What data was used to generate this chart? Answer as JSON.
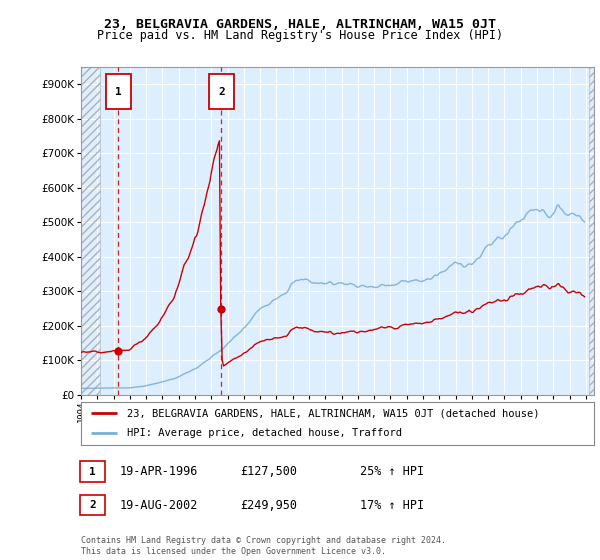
{
  "title": "23, BELGRAVIA GARDENS, HALE, ALTRINCHAM, WA15 0JT",
  "subtitle": "Price paid vs. HM Land Registry's House Price Index (HPI)",
  "legend_line1": "23, BELGRAVIA GARDENS, HALE, ALTRINCHAM, WA15 0JT (detached house)",
  "legend_line2": "HPI: Average price, detached house, Trafford",
  "footnote": "Contains HM Land Registry data © Crown copyright and database right 2024.\nThis data is licensed under the Open Government Licence v3.0.",
  "transaction1_label": "1",
  "transaction1_date": "19-APR-1996",
  "transaction1_price": "£127,500",
  "transaction1_hpi": "25% ↑ HPI",
  "transaction2_label": "2",
  "transaction2_date": "19-AUG-2002",
  "transaction2_price": "£249,950",
  "transaction2_hpi": "17% ↑ HPI",
  "transaction1_x": 1996.29,
  "transaction1_y": 127500,
  "transaction2_x": 2002.62,
  "transaction2_y": 249950,
  "sale_color": "#cc0000",
  "hpi_color": "#7aaed6",
  "background_plot": "#ddeeff",
  "ylim_min": 0,
  "ylim_max": 950000,
  "xlim_min": 1994.0,
  "xlim_max": 2025.5,
  "yticks": [
    0,
    100000,
    200000,
    300000,
    400000,
    500000,
    600000,
    700000,
    800000,
    900000
  ],
  "ytick_labels": [
    "£0",
    "£100K",
    "£200K",
    "£300K",
    "£400K",
    "£500K",
    "£600K",
    "£700K",
    "£800K",
    "£900K"
  ],
  "xtick_years": [
    1994,
    1995,
    1996,
    1997,
    1998,
    1999,
    2000,
    2001,
    2002,
    2003,
    2004,
    2005,
    2006,
    2007,
    2008,
    2009,
    2010,
    2011,
    2012,
    2013,
    2014,
    2015,
    2016,
    2017,
    2018,
    2019,
    2020,
    2021,
    2022,
    2023,
    2024,
    2025
  ],
  "hatch_left_end": 1995.17,
  "hatch_right_start": 2025.17,
  "fig_width": 6.0,
  "fig_height": 5.6,
  "dpi": 100
}
